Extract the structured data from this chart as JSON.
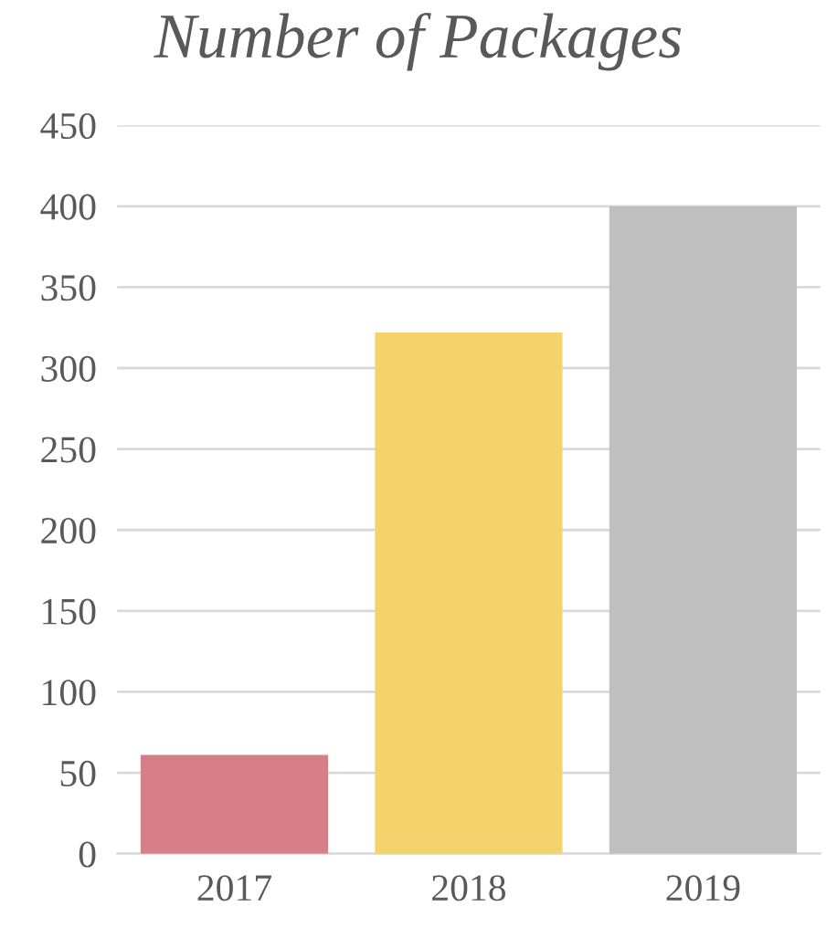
{
  "chart_data": {
    "type": "bar",
    "title": "Number of Packages",
    "categories": [
      "2017",
      "2018",
      "2019"
    ],
    "values": [
      61,
      322,
      400
    ],
    "colors": [
      "#d77f88",
      "#f5d36c",
      "#bfbfbf"
    ],
    "ylim": [
      0,
      450
    ],
    "yticks": [
      0,
      50,
      100,
      150,
      200,
      250,
      300,
      350,
      400,
      450
    ],
    "grid": "y"
  }
}
